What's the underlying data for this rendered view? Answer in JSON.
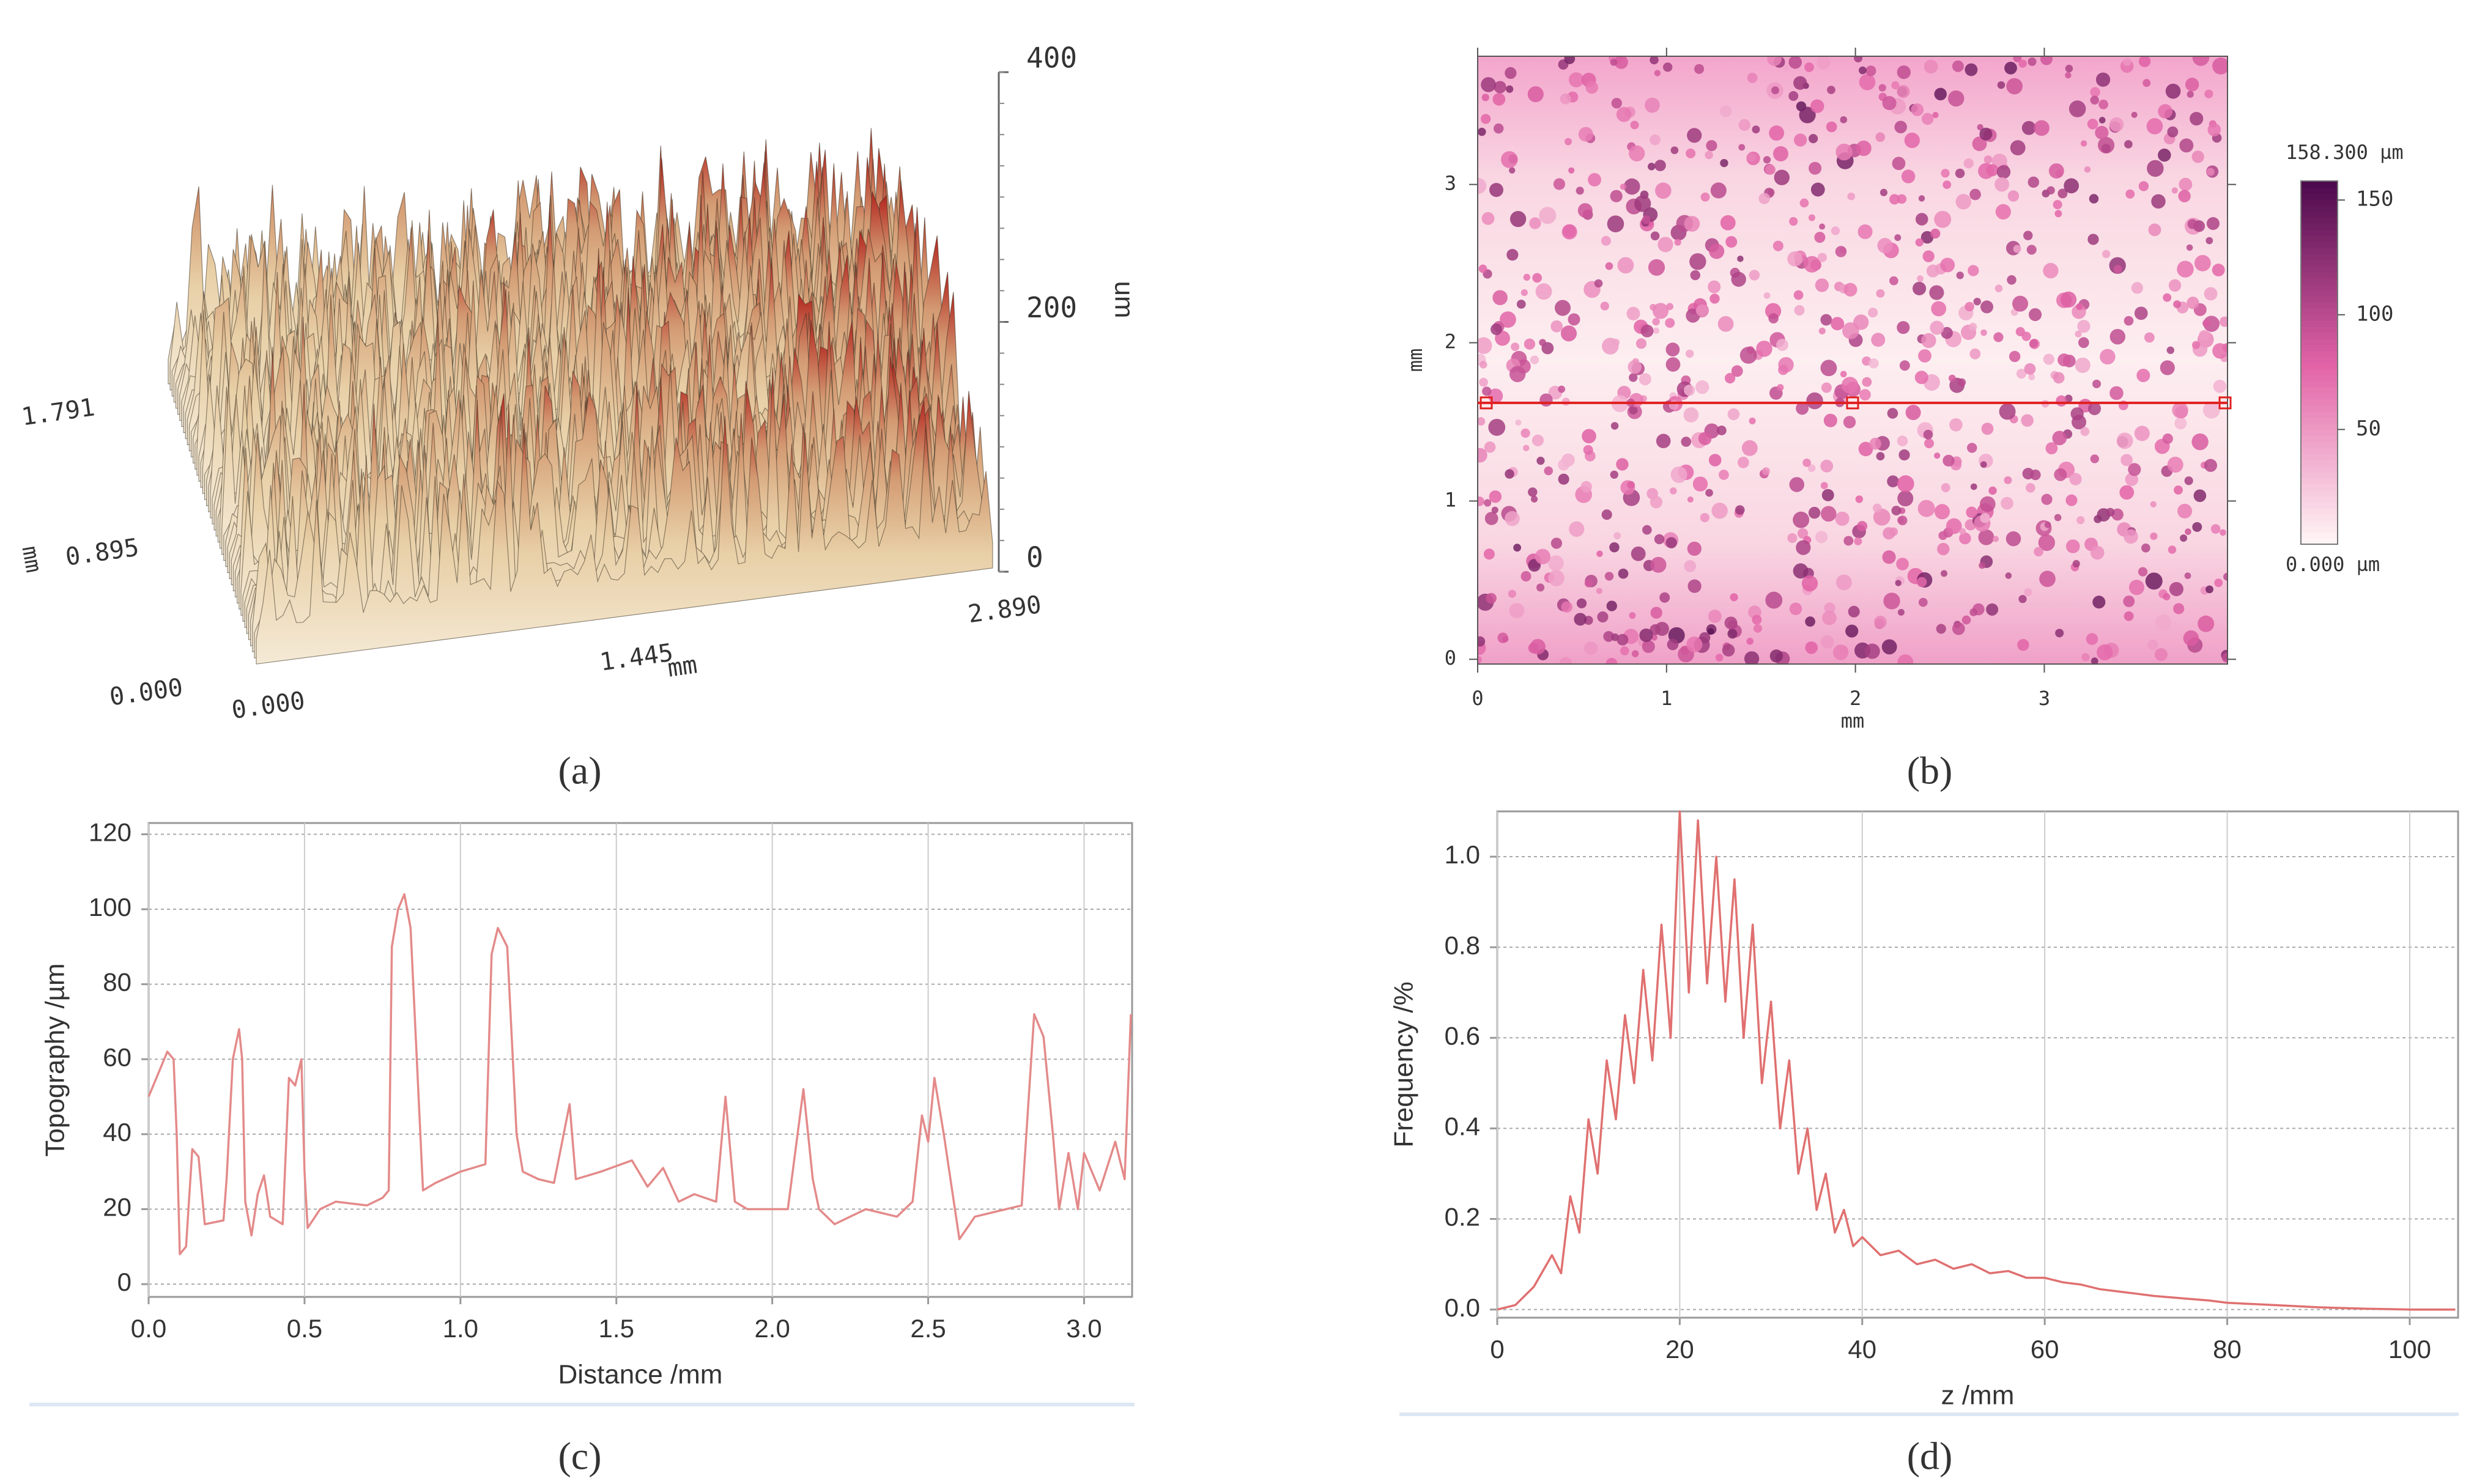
{
  "chart_data": [
    {
      "type": "surface3d",
      "panel_label": "(a)",
      "xlabel": "mm",
      "ylabel": "mm",
      "zlabel": "um",
      "xlim": [
        0,
        2.89
      ],
      "ylim": [
        0,
        1.791
      ],
      "zlim": [
        0,
        400
      ],
      "xticks": [
        {
          "value": 0,
          "label": "0.000"
        },
        1.445,
        {
          "value": 2.89,
          "label": "2.890"
        }
      ],
      "yticks": [
        {
          "value": 0,
          "label": "0.000"
        },
        0.895,
        1.791
      ],
      "zticks": [
        0,
        200,
        400
      ]
    },
    {
      "type": "heatmap",
      "panel_label": "(b)",
      "xlabel": "mm",
      "ylabel": "mm",
      "xlim": [
        0,
        3.97
      ],
      "ylim": [
        -0.03,
        3.81
      ],
      "xticks": [
        0,
        1,
        2,
        3
      ],
      "yticks": [
        0,
        1,
        2,
        3
      ],
      "profile_y": 1.62,
      "profile_color": "#e02020",
      "colors": [
        "#fff6f6",
        "#e262a6",
        "#4a0a4c"
      ],
      "colorbar": {
        "lim": [
          0,
          158.3
        ],
        "ticks": [
          50,
          100,
          150
        ],
        "max_label": "158.300 µm",
        "min_label": "0.000 µm"
      }
    },
    {
      "type": "line",
      "panel_label": "(c)",
      "xlabel": "Distance /mm",
      "ylabel": "Topography /µm",
      "color": "#e48a8a",
      "grid": true,
      "xlim": [
        0,
        3.154
      ],
      "ylim": [
        -3.4,
        123
      ],
      "xticks": [
        {
          "value": 0,
          "label": "0.0"
        },
        0.5,
        {
          "value": 1,
          "label": "1.0"
        },
        1.5,
        {
          "value": 2,
          "label": "2.0"
        },
        2.5,
        {
          "value": 3,
          "label": "3.0"
        }
      ],
      "yticks": [
        0,
        20,
        40,
        60,
        80,
        100,
        120
      ],
      "x": [
        0,
        0.04,
        0.06,
        0.08,
        0.09,
        0.1,
        0.12,
        0.14,
        0.16,
        0.18,
        0.24,
        0.25,
        0.27,
        0.29,
        0.3,
        0.31,
        0.33,
        0.35,
        0.37,
        0.39,
        0.43,
        0.45,
        0.47,
        0.49,
        0.5,
        0.51,
        0.55,
        0.6,
        0.7,
        0.75,
        0.77,
        0.78,
        0.8,
        0.82,
        0.84,
        0.86,
        0.88,
        0.92,
        1.0,
        1.08,
        1.1,
        1.12,
        1.15,
        1.18,
        1.2,
        1.25,
        1.3,
        1.35,
        1.37,
        1.45,
        1.55,
        1.6,
        1.65,
        1.7,
        1.75,
        1.82,
        1.85,
        1.88,
        1.92,
        2.0,
        2.05,
        2.1,
        2.13,
        2.15,
        2.2,
        2.3,
        2.4,
        2.45,
        2.48,
        2.5,
        2.52,
        2.55,
        2.6,
        2.65,
        2.75,
        2.8,
        2.84,
        2.87,
        2.9,
        2.92,
        2.95,
        2.98,
        3.0,
        3.05,
        3.1,
        3.13,
        3.15
      ],
      "values": [
        50,
        58,
        62,
        60,
        40,
        8,
        10,
        36,
        34,
        16,
        17,
        28,
        60,
        68,
        60,
        22,
        13,
        24,
        29,
        18,
        16,
        55,
        53,
        60,
        30,
        15,
        20,
        22,
        21,
        23,
        25,
        90,
        100,
        104,
        95,
        60,
        25,
        27,
        30,
        32,
        88,
        95,
        90,
        40,
        30,
        28,
        27,
        48,
        28,
        30,
        33,
        26,
        31,
        22,
        24,
        22,
        50,
        22,
        20,
        20,
        20,
        52,
        28,
        20,
        16,
        20,
        18,
        22,
        45,
        38,
        55,
        40,
        12,
        18,
        20,
        21,
        72,
        66,
        40,
        20,
        35,
        20,
        35,
        25,
        38,
        28,
        72
      ]
    },
    {
      "type": "line",
      "panel_label": "(d)",
      "xlabel": "z /mm",
      "ylabel": "Frequency /%",
      "color": "#e07070",
      "grid": true,
      "xlim": [
        0,
        105.3
      ],
      "ylim": [
        -0.018,
        1.1
      ],
      "xticks": [
        0,
        20,
        40,
        60,
        80,
        100
      ],
      "yticks": [
        {
          "value": 0,
          "label": "0.0"
        },
        0.2,
        0.4,
        0.6,
        0.8,
        {
          "value": 1,
          "label": "1.0"
        }
      ],
      "x": [
        0,
        2,
        4,
        6,
        7,
        8,
        9,
        10,
        11,
        12,
        13,
        14,
        15,
        16,
        17,
        18,
        19,
        20,
        21,
        22,
        23,
        24,
        25,
        26,
        27,
        28,
        29,
        30,
        31,
        32,
        33,
        34,
        35,
        36,
        37,
        38,
        39,
        40,
        42,
        44,
        46,
        48,
        50,
        52,
        54,
        56,
        58,
        60,
        62,
        64,
        66,
        68,
        70,
        72,
        75,
        78,
        80,
        85,
        90,
        95,
        100,
        105
      ],
      "values": [
        0,
        0.01,
        0.05,
        0.12,
        0.08,
        0.25,
        0.17,
        0.42,
        0.3,
        0.55,
        0.42,
        0.65,
        0.5,
        0.75,
        0.55,
        0.85,
        0.6,
        1.1,
        0.7,
        1.08,
        0.72,
        1.0,
        0.68,
        0.95,
        0.6,
        0.85,
        0.5,
        0.68,
        0.4,
        0.55,
        0.3,
        0.4,
        0.22,
        0.3,
        0.17,
        0.22,
        0.14,
        0.16,
        0.12,
        0.13,
        0.1,
        0.11,
        0.09,
        0.1,
        0.08,
        0.085,
        0.07,
        0.07,
        0.06,
        0.055,
        0.045,
        0.04,
        0.035,
        0.03,
        0.025,
        0.02,
        0.015,
        0.01,
        0.005,
        0.002,
        0,
        0
      ]
    }
  ]
}
